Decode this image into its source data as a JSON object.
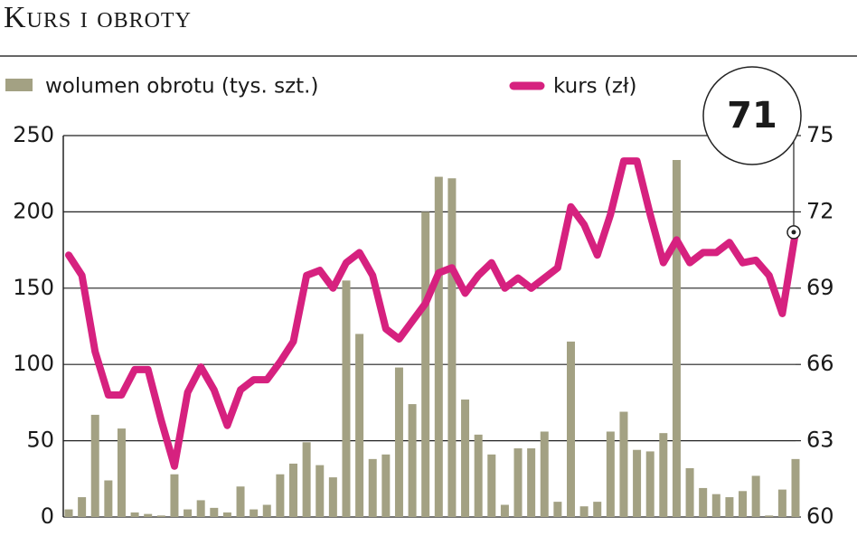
{
  "chart_data": {
    "type": "bar-line",
    "title": "Kurs i obroty",
    "annotation": "71",
    "series": [
      {
        "name": "wolumen obrotu (tys. szt.)",
        "type": "bar",
        "color": "#a3a183",
        "axis": "y",
        "values": [
          5,
          13,
          67,
          24,
          58,
          3,
          2,
          1,
          28,
          5,
          11,
          6,
          3,
          20,
          5,
          8,
          28,
          35,
          49,
          34,
          26,
          155,
          120,
          38,
          41,
          98,
          74,
          200,
          223,
          222,
          77,
          54,
          41,
          8,
          45,
          45,
          56,
          10,
          115,
          7,
          10,
          56,
          69,
          44,
          43,
          55,
          234,
          32,
          19,
          15,
          13,
          17,
          27,
          1,
          18,
          38
        ]
      },
      {
        "name": "kurs (zł)",
        "type": "line",
        "color": "#d6217f",
        "axis": "y2",
        "values": [
          70.3,
          69.5,
          66.5,
          64.8,
          64.8,
          65.8,
          65.8,
          63.8,
          62.0,
          64.9,
          65.9,
          65.0,
          63.6,
          65.0,
          65.4,
          65.4,
          66.1,
          66.9,
          69.5,
          69.7,
          69.0,
          70.0,
          70.4,
          69.5,
          67.4,
          67.0,
          67.7,
          68.4,
          69.6,
          69.8,
          68.8,
          69.5,
          70.0,
          69.0,
          69.4,
          69.0,
          69.4,
          69.8,
          72.2,
          71.5,
          70.3,
          71.9,
          74.0,
          74.0,
          71.9,
          70.0,
          70.9,
          70.0,
          70.4,
          70.4,
          70.8,
          70.0,
          70.1,
          69.5,
          68.0,
          71.2
        ]
      }
    ],
    "ylim": [
      0,
      250
    ],
    "yticks": [
      0,
      50,
      100,
      150,
      200,
      250
    ],
    "y2lim": [
      60,
      75
    ],
    "y2ticks": [
      60,
      63,
      66,
      69,
      72,
      75
    ],
    "grid": true
  }
}
